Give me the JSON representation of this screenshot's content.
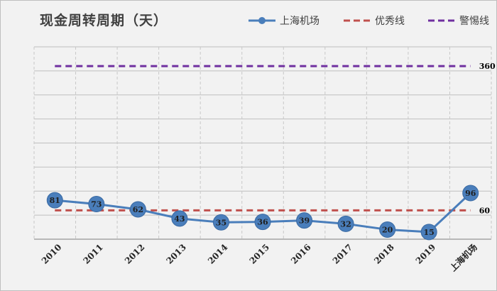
{
  "chart_data": {
    "type": "line",
    "title": "现金周转周期（天）",
    "categories": [
      "2010",
      "2011",
      "2012",
      "2013",
      "2014",
      "2015",
      "2016",
      "2017",
      "2018",
      "2019",
      "上海机场"
    ],
    "series": [
      {
        "name": "上海机场",
        "values": [
          81,
          73,
          62,
          43,
          35,
          36,
          39,
          32,
          20,
          15,
          96
        ],
        "color": "#4a7ebb"
      }
    ],
    "reference_lines": [
      {
        "name": "优秀线",
        "value": 60,
        "label": "60",
        "color": "#c0504d",
        "style": "dashed"
      },
      {
        "name": "警惕线",
        "value": 360,
        "label": "360",
        "color": "#7030a0",
        "style": "dashed"
      }
    ],
    "ylim": [
      0,
      400
    ],
    "grid": true,
    "legend_position": "top-right"
  }
}
